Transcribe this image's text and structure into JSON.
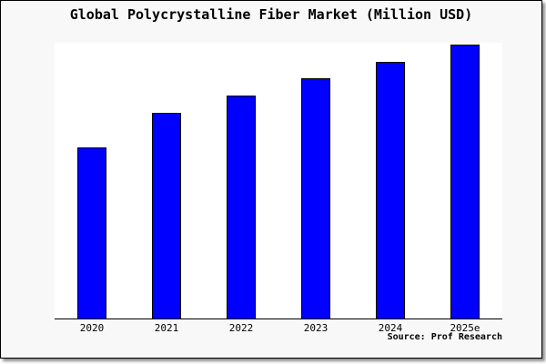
{
  "chart_data": {
    "type": "bar",
    "title": "Global Polycrystalline Fiber Market (Million USD)",
    "categories": [
      "2020",
      "2021",
      "2022",
      "2023",
      "2024",
      "2025e"
    ],
    "values": [
      62.5,
      75.1,
      81.4,
      87.7,
      93.7,
      100
    ],
    "values_note": "Y-axis has no ticks, labels or gridlines; values are relative bar heights expressed as % of the tallest (2025e) bar.",
    "xlabel": "",
    "ylabel": "",
    "legend": "none",
    "grid": false,
    "source": "Source: Prof Research",
    "colors": {
      "bar_fill": "#0000ff",
      "bar_edge": "#000000",
      "plot_background": "#ffffff",
      "canvas_background": "#f8f8f8",
      "frame_border": "#000000",
      "text": "#000000"
    }
  }
}
